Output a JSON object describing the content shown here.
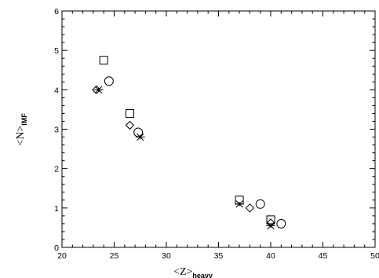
{
  "chart_data": {
    "type": "scatter",
    "xlabel": "<Z>",
    "xlabel_sub": "heavy",
    "ylabel": "<N>",
    "ylabel_sub": "IMF",
    "xlim": [
      20,
      50
    ],
    "ylim": [
      0,
      6
    ],
    "xticks": [
      20,
      25,
      30,
      35,
      40,
      45,
      50
    ],
    "yticks": [
      0,
      1,
      2,
      3,
      4,
      5,
      6
    ],
    "grid": false,
    "series": [
      {
        "marker": "square",
        "points": [
          [
            24.0,
            4.75
          ],
          [
            26.5,
            3.4
          ],
          [
            37.0,
            1.2
          ],
          [
            40.0,
            0.7
          ]
        ]
      },
      {
        "marker": "circle",
        "points": [
          [
            24.5,
            4.22
          ],
          [
            27.3,
            2.92
          ],
          [
            39.0,
            1.1
          ],
          [
            41.0,
            0.6
          ]
        ]
      },
      {
        "marker": "diamond",
        "points": [
          [
            23.3,
            4.0
          ],
          [
            26.5,
            3.1
          ],
          [
            38.0,
            1.0
          ],
          [
            40.0,
            0.62
          ]
        ]
      },
      {
        "marker": "star",
        "points": [
          [
            23.5,
            4.0
          ],
          [
            27.5,
            2.8
          ],
          [
            37.0,
            1.1
          ],
          [
            40.0,
            0.55
          ]
        ]
      }
    ]
  }
}
